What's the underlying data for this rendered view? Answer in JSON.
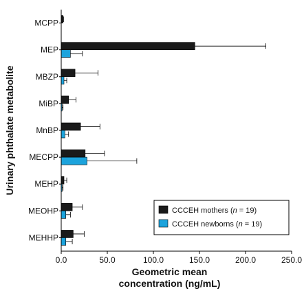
{
  "chart_data": {
    "type": "bar",
    "orientation": "horizontal",
    "categories": [
      "MCPP",
      "MEP",
      "MBZP",
      "MiBP",
      "MnBP",
      "MECPP",
      "MEHP",
      "MEOHP",
      "MEHHP"
    ],
    "series": [
      {
        "name_prefix": "CCCEH mothers (",
        "name_n_letter": "n",
        "name_suffix": " = 19)",
        "color": "#1a1a1a",
        "values": [
          2,
          145,
          15,
          8,
          21,
          26,
          3,
          12,
          13
        ],
        "error_upper": [
          2.5,
          222,
          40,
          16,
          42,
          47,
          6,
          23,
          25
        ]
      },
      {
        "name_prefix": "CCCEH newborns (",
        "name_n_letter": "n",
        "name_suffix": " = 19)",
        "color": "#1ca3dc",
        "values": [
          0,
          10,
          3,
          1,
          4,
          28,
          1,
          5,
          5
        ],
        "error_upper": [
          0,
          23,
          6,
          2,
          8,
          82,
          2,
          10,
          12
        ]
      }
    ],
    "xlim": [
      0,
      250
    ],
    "xticks": [
      "0.0",
      "50.0",
      "100.0",
      "150.0",
      "200.0",
      "250.0"
    ],
    "xtick_values": [
      0,
      50,
      100,
      150,
      200,
      250
    ],
    "xlabel_line1": "Geometric mean",
    "xlabel_line2": "concentration (ng/mL)",
    "ylabel": "Urinary phthalate metabolite",
    "legend_position": "bottom-right",
    "grid": false
  }
}
